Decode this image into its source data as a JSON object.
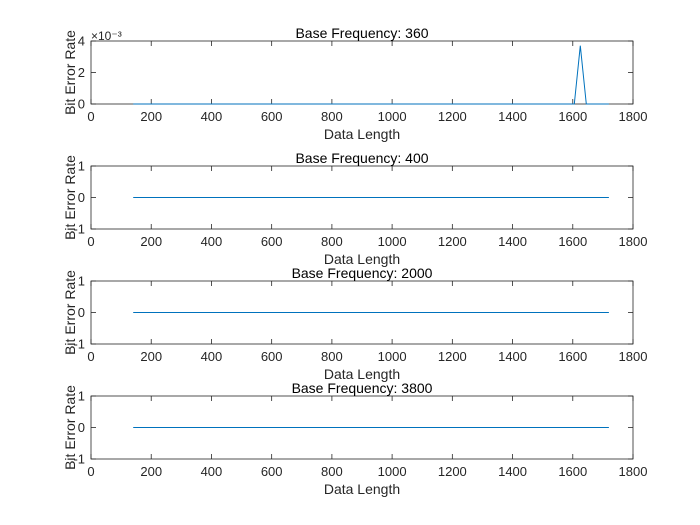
{
  "chart_data": [
    {
      "type": "line",
      "title": "Base Frequency: 360",
      "xlabel": "Data Length",
      "ylabel": "Bit Error Rate",
      "xlim": [
        0,
        1800
      ],
      "ylim": [
        0,
        0.004
      ],
      "xticks": [
        0,
        200,
        400,
        600,
        800,
        1000,
        1200,
        1400,
        1600,
        1800
      ],
      "xtick_labels": [
        "0",
        "200",
        "400",
        "600",
        "800",
        "1000",
        "1200",
        "1400",
        "1600",
        "1800"
      ],
      "yticks": [
        0,
        0.002,
        0.004
      ],
      "ytick_labels": [
        "0",
        "2",
        "4"
      ],
      "y_exponent_label": "×10⁻³",
      "series": [
        {
          "color": "#0072BD",
          "x": [
            140,
            1605,
            1625,
            1645,
            1720
          ],
          "y": [
            0,
            0,
            0.0037,
            0,
            0
          ]
        }
      ]
    },
    {
      "type": "line",
      "title": "Base Frequency: 400",
      "xlabel": "Data Length",
      "ylabel": "Bit Error Rate",
      "xlim": [
        0,
        1800
      ],
      "ylim": [
        -1,
        1
      ],
      "xticks": [
        0,
        200,
        400,
        600,
        800,
        1000,
        1200,
        1400,
        1600,
        1800
      ],
      "xtick_labels": [
        "0",
        "200",
        "400",
        "600",
        "800",
        "1000",
        "1200",
        "1400",
        "1600",
        "1800"
      ],
      "yticks": [
        -1,
        0,
        1
      ],
      "ytick_labels": [
        "-1",
        "0",
        "1"
      ],
      "series": [
        {
          "color": "#0072BD",
          "x": [
            140,
            1720
          ],
          "y": [
            0,
            0
          ]
        }
      ]
    },
    {
      "type": "line",
      "title": "Base Frequency: 2000",
      "xlabel": "Data Length",
      "ylabel": "Bit Error Rate",
      "xlim": [
        0,
        1800
      ],
      "ylim": [
        -1,
        1
      ],
      "xticks": [
        0,
        200,
        400,
        600,
        800,
        1000,
        1200,
        1400,
        1600,
        1800
      ],
      "xtick_labels": [
        "0",
        "200",
        "400",
        "600",
        "800",
        "1000",
        "1200",
        "1400",
        "1600",
        "1800"
      ],
      "yticks": [
        -1,
        0,
        1
      ],
      "ytick_labels": [
        "-1",
        "0",
        "1"
      ],
      "series": [
        {
          "color": "#0072BD",
          "x": [
            140,
            1720
          ],
          "y": [
            0,
            0
          ]
        }
      ]
    },
    {
      "type": "line",
      "title": "Base Frequency: 3800",
      "xlabel": "Data Length",
      "ylabel": "Bit Error Rate",
      "xlim": [
        0,
        1800
      ],
      "ylim": [
        -1,
        1
      ],
      "xticks": [
        0,
        200,
        400,
        600,
        800,
        1000,
        1200,
        1400,
        1600,
        1800
      ],
      "xtick_labels": [
        "0",
        "200",
        "400",
        "600",
        "800",
        "1000",
        "1200",
        "1400",
        "1600",
        "1800"
      ],
      "yticks": [
        -1,
        0,
        1
      ],
      "ytick_labels": [
        "-1",
        "0",
        "1"
      ],
      "series": [
        {
          "color": "#0072BD",
          "x": [
            140,
            1720
          ],
          "y": [
            0,
            0
          ]
        }
      ]
    }
  ]
}
